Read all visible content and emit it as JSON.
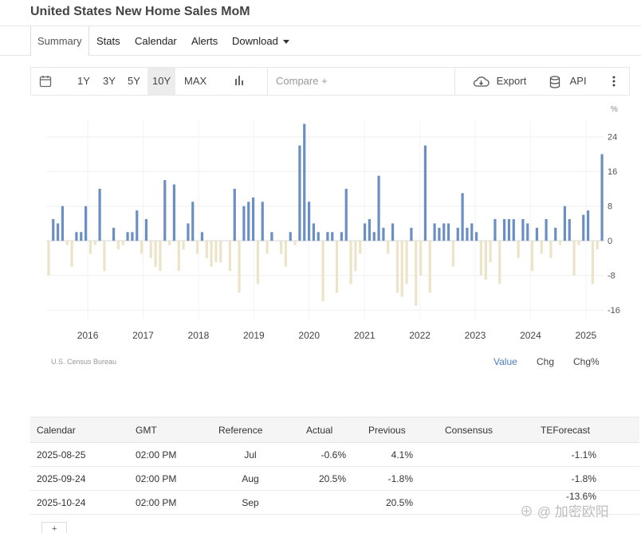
{
  "page": {
    "title": "United States New Home Sales MoM"
  },
  "tabs": [
    {
      "label": "Summary",
      "active": true
    },
    {
      "label": "Stats"
    },
    {
      "label": "Calendar"
    },
    {
      "label": "Alerts"
    },
    {
      "label": "Download"
    }
  ],
  "toolbar": {
    "ranges": [
      "1Y",
      "3Y",
      "5Y",
      "10Y",
      "MAX"
    ],
    "active_range": "10Y",
    "compare_placeholder": "Compare +",
    "export_label": "Export",
    "api_label": "API"
  },
  "chart_data": {
    "type": "bar",
    "unit": "%",
    "y_ticks": [
      24,
      16,
      8,
      0,
      -8,
      -16
    ],
    "ylim": [
      -18,
      28
    ],
    "x_ticks": [
      "2016",
      "2017",
      "2018",
      "2019",
      "2020",
      "2021",
      "2022",
      "2023",
      "2024",
      "2025"
    ],
    "x_range": [
      "2015-09",
      "2025-09"
    ],
    "positive_color": "#6b8fc2",
    "negative_color": "#ece3c8",
    "values": [
      -8,
      5,
      4,
      8,
      -1,
      -6,
      2,
      2,
      8,
      -3,
      -1,
      12,
      -7,
      0,
      3,
      -2,
      -1,
      2,
      2,
      7,
      -3,
      5,
      -4,
      -6,
      -7,
      14,
      -1,
      13,
      -7,
      -2,
      4,
      9,
      -3,
      2,
      -4,
      -6,
      -5,
      -5,
      0,
      -7,
      12,
      -12,
      8,
      9,
      10,
      -10,
      9,
      -3,
      2,
      0,
      -3,
      -6,
      2,
      -1,
      22,
      27,
      9,
      4,
      2,
      -14,
      2,
      2,
      -12,
      2,
      12,
      -10,
      -7,
      -3,
      4,
      5,
      2,
      15,
      3,
      -3,
      4,
      -12,
      -13,
      -10,
      3,
      -15,
      -8,
      22,
      -12,
      4,
      3,
      4,
      4,
      -6,
      3,
      11,
      3,
      4,
      2,
      -8,
      -9,
      -5,
      5,
      -10,
      5,
      5,
      5,
      -4,
      5,
      4,
      -7,
      3,
      -3,
      5,
      -4,
      3,
      -1,
      8,
      5,
      -8,
      -1,
      6,
      7,
      -10,
      -2,
      20
    ]
  },
  "source": "U.S. Census Bureau",
  "chart_modes": [
    "Value",
    "Chg",
    "Chg%"
  ],
  "active_mode": "Value",
  "table": {
    "headers": [
      "Calendar",
      "GMT",
      "Reference",
      "Actual",
      "Previous",
      "Consensus",
      "TEForecast"
    ],
    "rows": [
      {
        "calendar": "2025-08-25",
        "gmt": "02:00 PM",
        "reference": "Jul",
        "actual": "-0.6%",
        "previous": "4.1%",
        "consensus": "",
        "teforecast": "-1.1%"
      },
      {
        "calendar": "2025-09-24",
        "gmt": "02:00 PM",
        "reference": "Aug",
        "actual": "20.5%",
        "previous": "-1.8%",
        "consensus": "",
        "teforecast": "-1.8%"
      },
      {
        "calendar": "2025-10-24",
        "gmt": "02:00 PM",
        "reference": "Sep",
        "actual": "",
        "previous": "20.5%",
        "consensus": "",
        "teforecast": "-13.6%"
      }
    ]
  },
  "table_add_label": "+",
  "watermark": "⊕ @ 加密欧阳",
  "icons": {
    "calendar": "calendar-icon",
    "chart_type": "bar-chart-icon",
    "export": "cloud-download-icon",
    "api": "database-icon",
    "menu": "kebab-menu-icon"
  }
}
